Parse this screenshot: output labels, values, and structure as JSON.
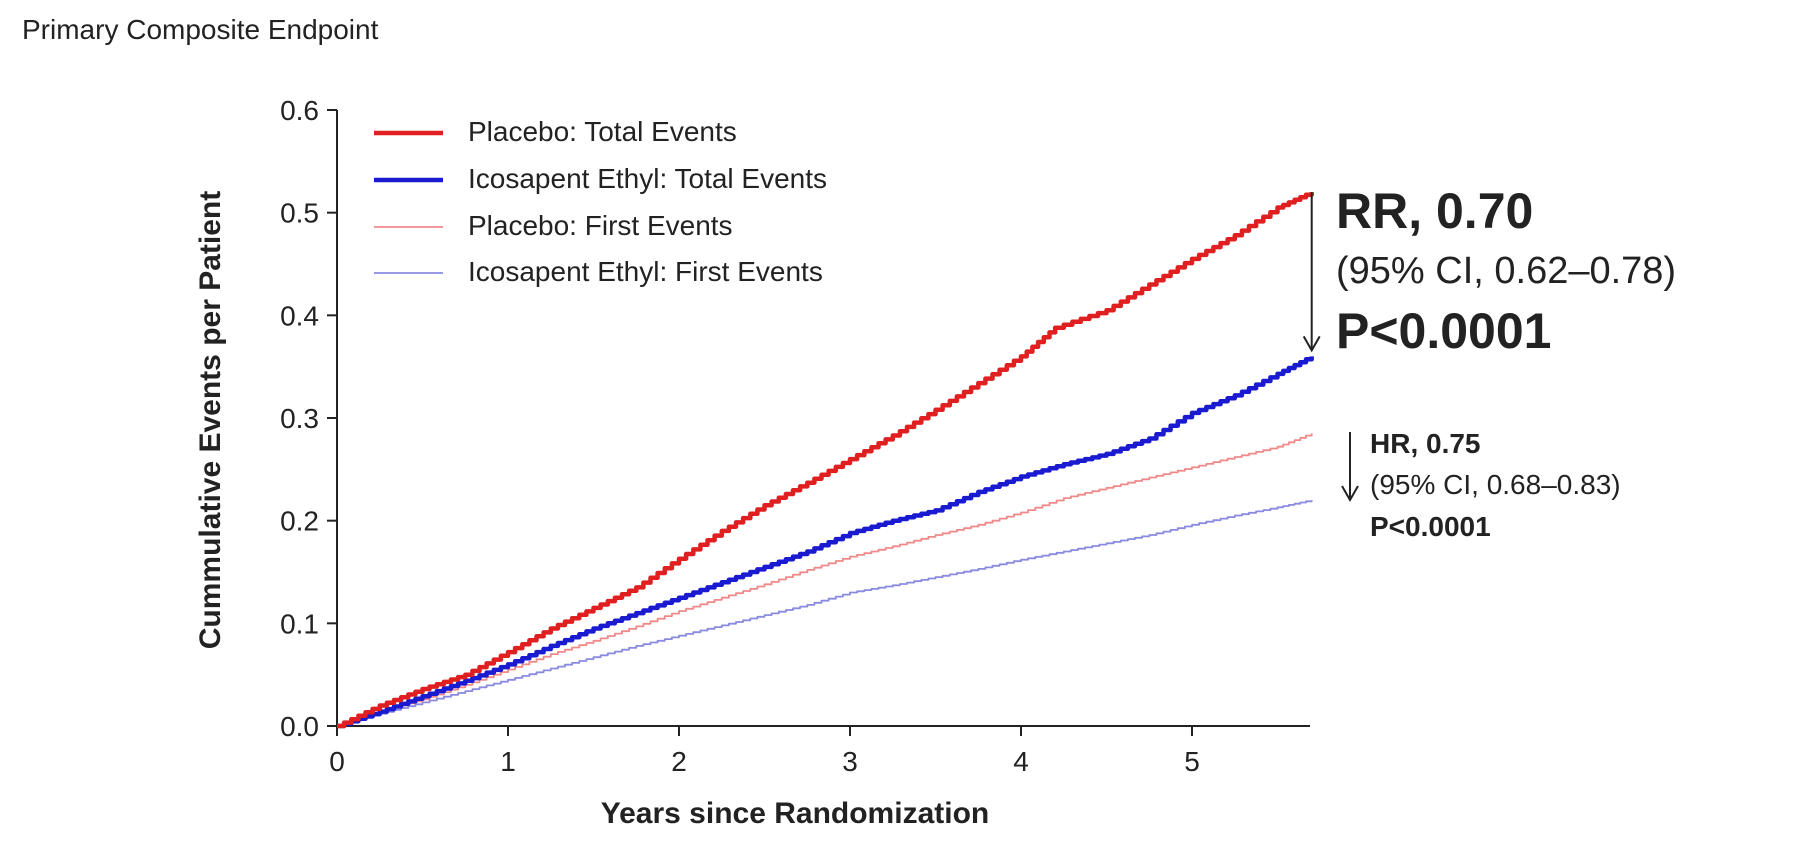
{
  "page": {
    "title": "Primary Composite Endpoint"
  },
  "chart_data": {
    "type": "line",
    "xlabel": "Years since Randomization",
    "ylabel": "Cummulative Events per Patient",
    "xlim": [
      0,
      5.7
    ],
    "ylim": [
      0,
      0.6
    ],
    "xticks": [
      "0",
      "1",
      "2",
      "3",
      "4",
      "5"
    ],
    "yticks": [
      "0.0",
      "0.1",
      "0.2",
      "0.3",
      "0.4",
      "0.5",
      "0.6"
    ],
    "grid": false,
    "legend_position": "top-left",
    "series": [
      {
        "name": "Placebo: Total Events",
        "color": "#e02020",
        "weight": "thick",
        "x": [
          0,
          0.25,
          0.5,
          0.75,
          1.0,
          1.25,
          1.5,
          1.75,
          2.0,
          2.25,
          2.5,
          2.75,
          3.0,
          3.25,
          3.5,
          3.75,
          4.0,
          4.2,
          4.5,
          4.75,
          5.0,
          5.25,
          5.5,
          5.7
        ],
        "y": [
          0,
          0.02,
          0.036,
          0.05,
          0.072,
          0.095,
          0.115,
          0.135,
          0.163,
          0.19,
          0.215,
          0.237,
          0.26,
          0.283,
          0.308,
          0.334,
          0.36,
          0.388,
          0.405,
          0.43,
          0.455,
          0.478,
          0.505,
          0.52
        ]
      },
      {
        "name": "Icosapent Ethyl: Total Events",
        "color": "#1a1ad0",
        "weight": "thick",
        "x": [
          0,
          0.25,
          0.5,
          0.75,
          1.0,
          1.25,
          1.5,
          1.75,
          2.0,
          2.25,
          2.5,
          2.75,
          3.0,
          3.25,
          3.5,
          3.75,
          4.0,
          4.25,
          4.5,
          4.75,
          5.0,
          5.25,
          5.5,
          5.7
        ],
        "y": [
          0,
          0.014,
          0.029,
          0.044,
          0.06,
          0.078,
          0.095,
          0.11,
          0.125,
          0.14,
          0.155,
          0.17,
          0.188,
          0.2,
          0.21,
          0.228,
          0.243,
          0.255,
          0.265,
          0.28,
          0.305,
          0.322,
          0.343,
          0.36
        ]
      },
      {
        "name": "Placebo: First Events",
        "color": "#f08a8a",
        "weight": "thin",
        "x": [
          0,
          0.25,
          0.5,
          0.75,
          1.0,
          1.25,
          1.5,
          1.75,
          2.0,
          2.25,
          2.5,
          2.75,
          3.0,
          3.25,
          3.5,
          3.75,
          4.0,
          4.25,
          4.5,
          4.75,
          5.0,
          5.25,
          5.5,
          5.7
        ],
        "y": [
          0,
          0.014,
          0.026,
          0.04,
          0.055,
          0.07,
          0.083,
          0.097,
          0.112,
          0.125,
          0.138,
          0.152,
          0.165,
          0.175,
          0.186,
          0.196,
          0.208,
          0.222,
          0.232,
          0.242,
          0.252,
          0.262,
          0.272,
          0.285
        ]
      },
      {
        "name": "Icosapent Ethyl: First Events",
        "color": "#8a8ae0",
        "weight": "thin",
        "x": [
          0,
          0.25,
          0.5,
          0.75,
          1.0,
          1.25,
          1.5,
          1.75,
          2.0,
          2.25,
          2.5,
          2.75,
          3.0,
          3.25,
          3.5,
          3.75,
          4.0,
          4.25,
          4.5,
          4.75,
          5.0,
          5.25,
          5.5,
          5.7
        ],
        "y": [
          0,
          0.012,
          0.023,
          0.034,
          0.045,
          0.056,
          0.067,
          0.078,
          0.088,
          0.098,
          0.108,
          0.118,
          0.13,
          0.137,
          0.145,
          0.153,
          0.162,
          0.17,
          0.178,
          0.186,
          0.196,
          0.205,
          0.213,
          0.22
        ]
      }
    ],
    "annotations": {
      "total": {
        "rr": "RR, 0.70",
        "ci": "(95% CI, 0.62–0.78)",
        "p": "P<0.0001",
        "arrow_from": 0.52,
        "arrow_to": 0.36,
        "arrow_x": 5.7
      },
      "first": {
        "hr": "HR, 0.75",
        "ci": "(95% CI, 0.68–0.83)",
        "p": "P<0.0001"
      }
    }
  }
}
